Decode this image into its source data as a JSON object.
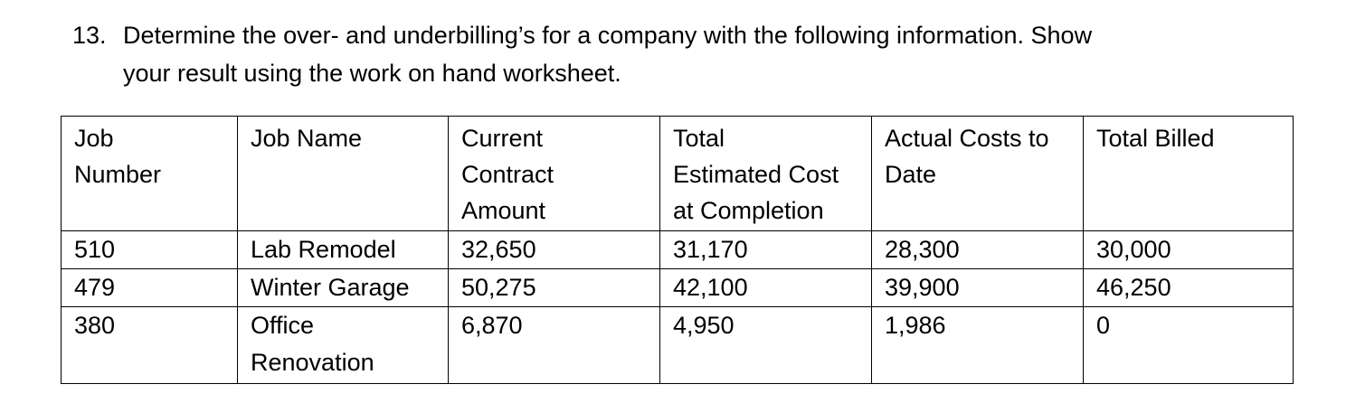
{
  "question": {
    "number": "13.",
    "line1": "Determine the over- and underbilling’s for a company with the following information.  Show",
    "line2": "your result using the work on hand worksheet."
  },
  "table": {
    "headers": [
      [
        "Job",
        "Number"
      ],
      [
        "Job Name"
      ],
      [
        "Current",
        "Contract",
        "Amount"
      ],
      [
        "Total",
        "Estimated Cost",
        "at Completion"
      ],
      [
        "Actual Costs to",
        "Date"
      ],
      [
        "Total Billed"
      ]
    ],
    "rows": [
      {
        "job_number": "510",
        "job_name": [
          "Lab Remodel"
        ],
        "contract": "32,650",
        "estimated": "31,170",
        "actual": "28,300",
        "billed": "30,000"
      },
      {
        "job_number": "479",
        "job_name": [
          "Winter Garage"
        ],
        "contract": "50,275",
        "estimated": "42,100",
        "actual": "39,900",
        "billed": "46,250"
      },
      {
        "job_number": "380",
        "job_name": [
          "Office",
          "Renovation"
        ],
        "contract": "6,870",
        "estimated": "4,950",
        "actual": "1,986",
        "billed": "0"
      }
    ]
  }
}
